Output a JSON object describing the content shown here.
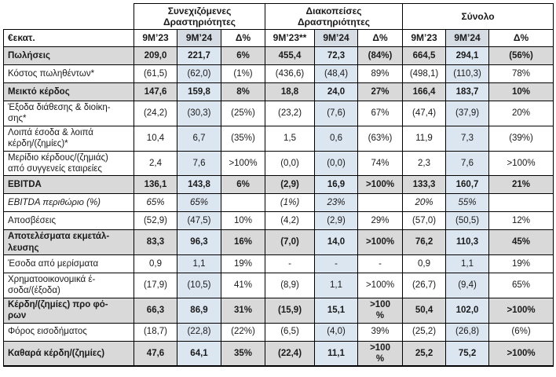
{
  "colors": {
    "row_emphasis_bg": "#d9d9d9",
    "col_9m24_bg": "#dce6f1",
    "header_9m24_bg": "#d6dce4",
    "border": "#000000",
    "text": "#1a1a1a"
  },
  "table": {
    "unit_label": "€εκατ.",
    "group_headers": [
      {
        "label": "Συνεχιζόμενες\nΔραστηριότητες"
      },
      {
        "label": "Διακοπείσες\nΔραστηριότητες"
      },
      {
        "label": "Σύνολο"
      }
    ],
    "column_headers": [
      "9Μ’23",
      "9Μ’24",
      "Δ%",
      "9Μ’23**",
      "9Μ’24",
      "Δ%",
      "9Μ’23",
      "9Μ’24",
      "Δ%"
    ],
    "rows": [
      {
        "label": "Πωλήσεις",
        "style": "bold",
        "values": [
          "209,0",
          "221,7",
          "6%",
          "455,4",
          "72,3",
          "(84%)",
          "664,5",
          "294,1",
          "(56%)"
        ]
      },
      {
        "label": "Κόστος πωληθέντων*",
        "style": "normal",
        "values": [
          "(61,5)",
          "(62,0)",
          "(1%)",
          "(436,6)",
          "(48,4)",
          "89%",
          "(498,1)",
          "(110,3)",
          "78%"
        ]
      },
      {
        "label": "Μεικτό κέρδος",
        "style": "bold",
        "values": [
          "147,6",
          "159,8",
          "8%",
          "18,8",
          "24,0",
          "27%",
          "166,4",
          "183,7",
          "10%"
        ]
      },
      {
        "label": "Έξοδα διάθεσης & διοίκη-\nσης*",
        "style": "normal",
        "values": [
          "(24,2)",
          "(30,3)",
          "(25%)",
          "(23,2)",
          "(7,6)",
          "67%",
          "(47,4)",
          "(37,9)",
          "20%"
        ]
      },
      {
        "label": "Λοιπά έσοδα & λοιπά\nκέρδη/(ζημίες)*",
        "style": "normal",
        "values": [
          "10,4",
          "6,7",
          "(35%)",
          "1,5",
          "0,6",
          "(63%)",
          "11,9",
          "7,3",
          "(39%)"
        ]
      },
      {
        "label": "Μερίδιο κέρδους/(ζημιάς)\nαπό συγγενείς εταιρείες",
        "style": "normal",
        "values": [
          "2,4",
          "7,6",
          ">100%",
          "(0,0)",
          "(0,0)",
          "74%",
          "2,3",
          "7,6",
          ">100%"
        ]
      },
      {
        "label": "EBITDA",
        "style": "bold",
        "values": [
          "136,1",
          "143,8",
          "6%",
          "(2,9)",
          "16,9",
          ">100%",
          "133,3",
          "160,7",
          "21%"
        ]
      },
      {
        "label": "EBITDA περιθώριο (%)",
        "style": "italic",
        "values": [
          "65%",
          "65%",
          "",
          "(1%)",
          "23%",
          "",
          "20%",
          "55%",
          ""
        ]
      },
      {
        "label": "Αποσβέσεις",
        "style": "normal",
        "values": [
          "(52,9)",
          "(47,5)",
          "10%",
          "(4,2)",
          "(2,9)",
          "29%",
          "(57,0)",
          "(50,5)",
          "12%"
        ]
      },
      {
        "label": "Αποτελέσματα εκμετάλ-\nλευσης",
        "style": "bold",
        "values": [
          "83,3",
          "96,3",
          "16%",
          "(7,0)",
          "14,0",
          ">100%",
          "76,2",
          "110,3",
          "45%"
        ]
      },
      {
        "label": "Έσοδα από μερίσματα",
        "style": "normal",
        "values": [
          "0,9",
          "1,1",
          "19%",
          "-",
          "-",
          "-",
          "0,9",
          "1,1",
          "19%"
        ]
      },
      {
        "label": "Χρηματοοικονομικά έ-\nσοδα/(έξοδα)",
        "style": "normal",
        "values": [
          "(17,9)",
          "(10,5)",
          "41%",
          "(8,9)",
          "1,1",
          ">100%",
          "(26,7)",
          "(9,4)",
          "65%"
        ]
      },
      {
        "label": "Κέρδη/(ζημίες) προ φό-\nρων",
        "style": "bold",
        "values": [
          "66,3",
          "86,9",
          "31%",
          "(15,9)",
          "15,1",
          ">100\n%",
          "50,4",
          "102,0",
          ">100%"
        ]
      },
      {
        "label": "Φόρος εισοδήματος",
        "style": "normal",
        "values": [
          "(18,7)",
          "(22,8)",
          "(22%)",
          "(6,5)",
          "(4,0)",
          "39%",
          "(25,2)",
          "(26,8)",
          "(6%)"
        ]
      },
      {
        "label": "Καθαρά κέρδη/(ζημίες)",
        "style": "bold",
        "values": [
          "47,6",
          "64,1",
          "35%",
          "(22,4)",
          "11,1",
          ">100\n%",
          "25,2",
          "75,2",
          ">100%"
        ]
      }
    ]
  }
}
